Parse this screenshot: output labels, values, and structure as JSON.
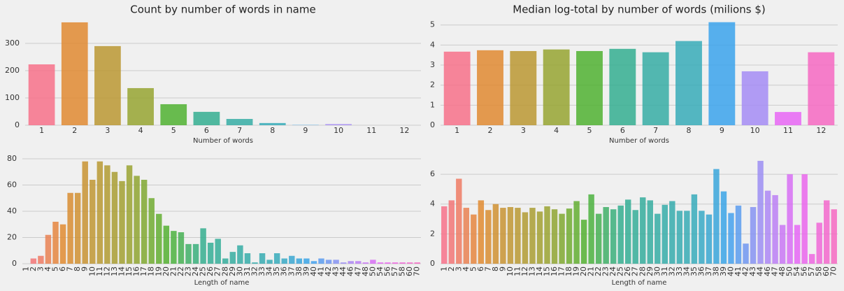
{
  "chart_data": [
    {
      "type": "bar",
      "title": "Count by number of words in name",
      "xlabel": "Number of words",
      "categories": [
        "1",
        "2",
        "3",
        "4",
        "5",
        "6",
        "7",
        "8",
        "9",
        "10",
        "11",
        "12"
      ],
      "values": [
        223,
        377,
        290,
        136,
        77,
        49,
        23,
        8,
        1,
        4,
        0,
        0
      ],
      "ylim": [
        0,
        382
      ],
      "yticks": [
        0,
        100,
        200,
        300
      ],
      "grid": true,
      "xtick_rotation": 0,
      "palette": [
        "#f77189",
        "#e18a31",
        "#bb9832",
        "#97a431",
        "#50b131",
        "#34ae91",
        "#36ada4",
        "#37abb8",
        "#3ba3ec",
        "#a48cf4",
        "#e866f4",
        "#f668c2"
      ]
    },
    {
      "type": "bar",
      "title": "Median log-total by number of words (milions $)",
      "xlabel": "Number of words",
      "categories": [
        "1",
        "2",
        "3",
        "4",
        "5",
        "6",
        "7",
        "8",
        "9",
        "10",
        "11",
        "12"
      ],
      "values": [
        3.67,
        3.74,
        3.7,
        3.78,
        3.7,
        3.81,
        3.64,
        4.2,
        5.14,
        2.69,
        0.66,
        3.64
      ],
      "ylim": [
        0,
        5.2
      ],
      "yticks": [
        0,
        1,
        2,
        3,
        4,
        5
      ],
      "grid": true,
      "xtick_rotation": 0,
      "palette": [
        "#f77189",
        "#e18a31",
        "#bb9832",
        "#97a431",
        "#50b131",
        "#34ae91",
        "#36ada4",
        "#37abb8",
        "#3ba3ec",
        "#a48cf4",
        "#e866f4",
        "#f668c2"
      ]
    },
    {
      "type": "bar",
      "xlabel": "Length of name",
      "categories": [
        "1",
        "2",
        "3",
        "4",
        "5",
        "6",
        "7",
        "8",
        "9",
        "10",
        "11",
        "12",
        "13",
        "14",
        "15",
        "16",
        "17",
        "18",
        "19",
        "20",
        "21",
        "22",
        "23",
        "24",
        "25",
        "26",
        "27",
        "28",
        "29",
        "30",
        "31",
        "32",
        "33",
        "34",
        "35",
        "36",
        "37",
        "38",
        "39",
        "40",
        "41",
        "42",
        "43",
        "44",
        "46",
        "47",
        "48",
        "50",
        "54",
        "56",
        "57",
        "58",
        "60",
        "70"
      ],
      "values": [
        0,
        4,
        6,
        22,
        32,
        30,
        54,
        54,
        78,
        64,
        78,
        75,
        70,
        63,
        75,
        67,
        64,
        50,
        38,
        29,
        25,
        24,
        15,
        15,
        27,
        16,
        19,
        4,
        9,
        14,
        8,
        1,
        8,
        3,
        8,
        4,
        6,
        4,
        4,
        2,
        4,
        3,
        3,
        1,
        2,
        2,
        1,
        3,
        1,
        1,
        1,
        1,
        1,
        1
      ],
      "ylim": [
        0,
        86.4
      ],
      "yticks": [
        0,
        20,
        40,
        60,
        80
      ],
      "grid": true,
      "xtick_rotation": 90,
      "palette": [
        "#f77189",
        "#e18a31",
        "#bb9832",
        "#97a431",
        "#50b131",
        "#34ae91",
        "#36ada4",
        "#37abb8",
        "#3ba3ec",
        "#a48cf4",
        "#e866f4",
        "#f668c2"
      ]
    },
    {
      "type": "bar",
      "xlabel": "Length of name",
      "categories": [
        "1",
        "2",
        "3",
        "4",
        "5",
        "6",
        "7",
        "8",
        "9",
        "10",
        "11",
        "12",
        "13",
        "14",
        "15",
        "16",
        "17",
        "18",
        "19",
        "20",
        "21",
        "22",
        "23",
        "24",
        "25",
        "26",
        "27",
        "28",
        "29",
        "30",
        "31",
        "32",
        "33",
        "34",
        "35",
        "36",
        "37",
        "38",
        "39",
        "40",
        "41",
        "42",
        "43",
        "44",
        "46",
        "47",
        "48",
        "50",
        "54",
        "56",
        "57",
        "58",
        "60",
        "70"
      ],
      "values": [
        3.85,
        4.25,
        5.7,
        3.75,
        3.3,
        4.25,
        3.6,
        4.0,
        3.75,
        3.8,
        3.75,
        3.45,
        3.75,
        3.5,
        3.85,
        3.65,
        3.35,
        3.7,
        4.2,
        2.95,
        4.65,
        3.35,
        3.8,
        3.65,
        3.9,
        4.3,
        3.6,
        4.45,
        4.25,
        3.35,
        3.95,
        4.2,
        3.55,
        3.55,
        4.65,
        3.55,
        3.3,
        6.35,
        4.85,
        3.4,
        3.9,
        1.35,
        3.8,
        6.9,
        4.9,
        4.6,
        2.6,
        6.0,
        2.6,
        6.0,
        0.65,
        2.75,
        4.25,
        3.65
      ],
      "ylim": [
        0,
        7.6
      ],
      "yticks": [
        0,
        2,
        4,
        6
      ],
      "grid": true,
      "xtick_rotation": 90,
      "palette": [
        "#f77189",
        "#e18a31",
        "#bb9832",
        "#97a431",
        "#50b131",
        "#34ae91",
        "#36ada4",
        "#37abb8",
        "#3ba3ec",
        "#a48cf4",
        "#e866f4",
        "#f668c2"
      ]
    }
  ]
}
